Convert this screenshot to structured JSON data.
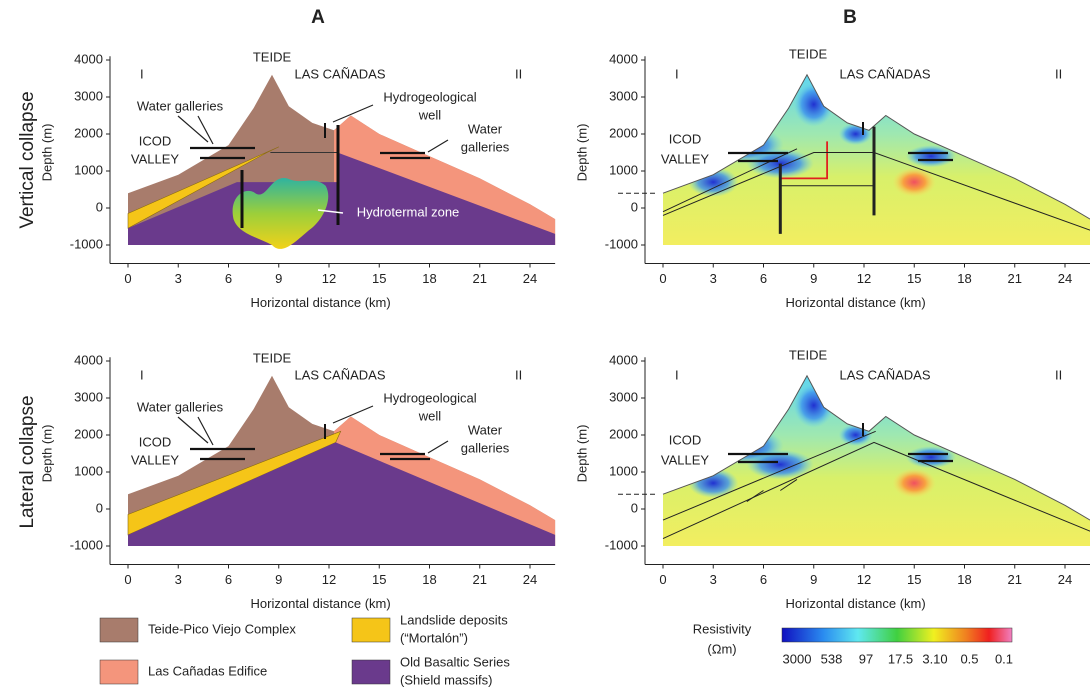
{
  "panel_letters": [
    "A",
    "B"
  ],
  "row_labels": [
    "Vertical collapse",
    "Lateral collapse"
  ],
  "axes": {
    "xlabel": "Horizontal distance (km)",
    "ylabel": "Depth (m)",
    "xticks": [
      0,
      3,
      6,
      9,
      12,
      15,
      18,
      21,
      24
    ],
    "yticks": [
      -1000,
      0,
      1000,
      2000,
      3000,
      4000
    ]
  },
  "panels": [
    {
      "labels": [
        "I",
        "II",
        "TEIDE",
        "LAS CAÑADAS",
        "Water galleries",
        "ICOD",
        "VALLEY",
        "Hydrogeological",
        "well",
        "Water",
        "galleries",
        "Hydrotermal zone"
      ]
    },
    {
      "labels": [
        "I",
        "II",
        "TEIDE",
        "LAS CAÑADAS",
        "ICOD",
        "VALLEY"
      ]
    },
    {
      "labels": [
        "I",
        "II",
        "TEIDE",
        "LAS CAÑADAS",
        "Water galleries",
        "ICOD",
        "VALLEY",
        "Hydrogeological",
        "well",
        "Water",
        "galleries"
      ]
    },
    {
      "labels": [
        "I",
        "II",
        "TEIDE",
        "LAS CAÑADAS",
        "ICOD",
        "VALLEY"
      ]
    }
  ],
  "legend": [
    {
      "lines": [
        "Teide-Pico Viejo Complex"
      ],
      "color": "#a87c6c"
    },
    {
      "lines": [
        "Landslide deposits",
        "(“Mortalón”)"
      ],
      "color": "#f5c518"
    },
    {
      "lines": [
        "Las Cañadas Edifice"
      ],
      "color": "#f4957c"
    },
    {
      "lines": [
        "Old Basaltic Series",
        "(Shield massifs)"
      ],
      "color": "#6a3a8c"
    }
  ],
  "colorbar": {
    "title": [
      "Resistivity",
      "(Ωm)"
    ],
    "labels": [
      "3000",
      "538",
      "97",
      "17.5",
      "3.10",
      "0.5",
      "0.1"
    ]
  }
}
